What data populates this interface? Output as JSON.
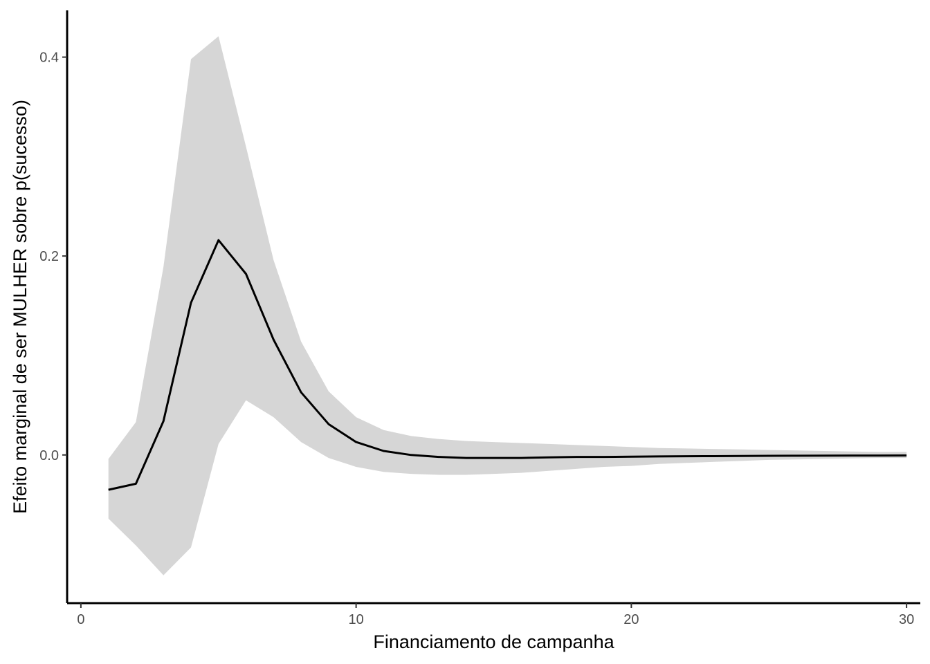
{
  "chart_data": {
    "type": "line",
    "title": "",
    "xlabel": "Financiamento de campanha",
    "ylabel": "Efeito marginal de ser MULHER sobre p(sucesso)",
    "xlim": [
      -0.5,
      30.5
    ],
    "ylim": [
      -0.149,
      0.447
    ],
    "x_ticks": [
      0,
      10,
      20,
      30
    ],
    "y_ticks": [
      0.0,
      0.2,
      0.4
    ],
    "x_tick_labels": [
      "0",
      "10",
      "20",
      "30"
    ],
    "y_tick_labels": [
      "0.0",
      "0.2",
      "0.4"
    ],
    "grid": false,
    "legend": "none",
    "colors": {
      "line": "#000000",
      "ribbon": "#d6d6d6",
      "axis": "#000000",
      "tick_text": "#4d4d4d"
    },
    "series": [
      {
        "x": [
          1,
          2,
          3,
          4,
          5,
          6,
          7,
          8,
          9,
          10,
          11,
          12,
          13,
          14,
          15,
          16,
          17,
          18,
          19,
          20,
          21,
          22,
          23,
          24,
          25,
          26,
          27,
          28,
          29,
          30
        ],
        "y": [
          -0.035,
          -0.029,
          0.034,
          0.153,
          0.216,
          0.182,
          0.116,
          0.063,
          0.031,
          0.013,
          0.004,
          0.0,
          -0.002,
          -0.003,
          -0.003,
          -0.003,
          -0.0025,
          -0.002,
          -0.002,
          -0.0018,
          -0.0015,
          -0.0013,
          -0.0012,
          -0.001,
          -0.0009,
          -0.0008,
          -0.0007,
          -0.0006,
          -0.0006,
          -0.0005
        ],
        "lower": [
          -0.064,
          -0.091,
          -0.121,
          -0.093,
          0.011,
          0.055,
          0.038,
          0.013,
          -0.003,
          -0.012,
          -0.017,
          -0.019,
          -0.02,
          -0.02,
          -0.019,
          -0.018,
          -0.016,
          -0.014,
          -0.012,
          -0.011,
          -0.009,
          -0.008,
          -0.007,
          -0.006,
          -0.005,
          -0.0045,
          -0.004,
          -0.0035,
          -0.003,
          -0.003
        ],
        "upper": [
          -0.004,
          0.033,
          0.189,
          0.398,
          0.421,
          0.31,
          0.196,
          0.114,
          0.064,
          0.038,
          0.025,
          0.019,
          0.016,
          0.014,
          0.013,
          0.012,
          0.011,
          0.01,
          0.009,
          0.008,
          0.007,
          0.0065,
          0.006,
          0.0055,
          0.005,
          0.0045,
          0.004,
          0.0035,
          0.003,
          0.003
        ]
      }
    ]
  }
}
